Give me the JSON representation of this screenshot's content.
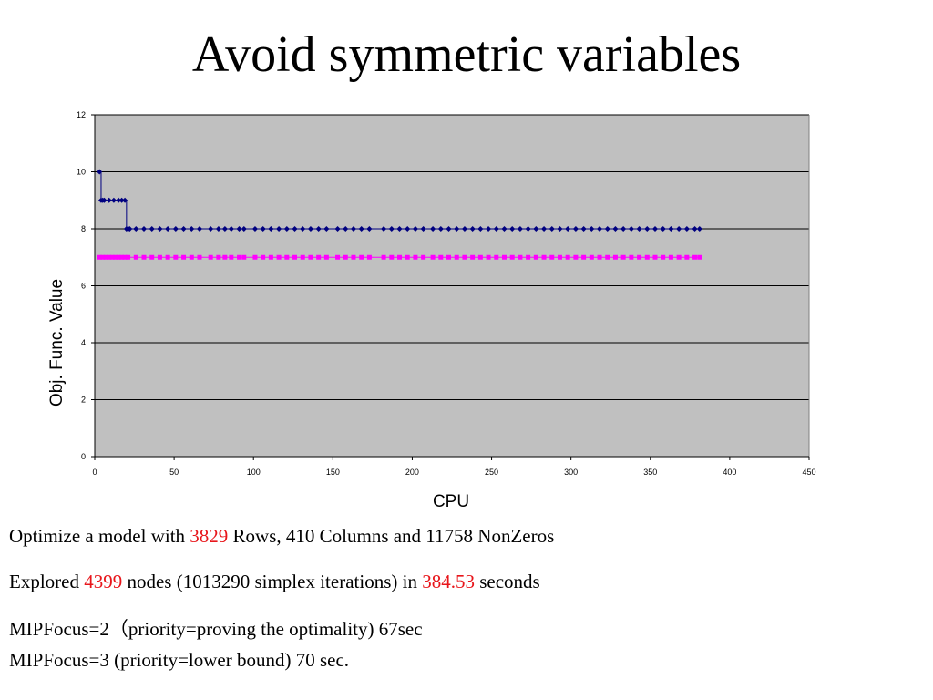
{
  "slide": {
    "title": "Avoid  symmetric variables"
  },
  "chart_data": {
    "type": "line",
    "title": "",
    "xlabel": "CPU",
    "ylabel": "Obj. Func. Value",
    "xlim": [
      0,
      450
    ],
    "ylim": [
      0,
      12
    ],
    "xticks": [
      0,
      50,
      100,
      150,
      200,
      250,
      300,
      350,
      400,
      450
    ],
    "yticks": [
      0,
      2,
      4,
      6,
      8,
      10,
      12
    ],
    "grid": "horizontal",
    "legend": "none",
    "background": "#c0c0c0",
    "series": [
      {
        "color": "#000080",
        "marker": "diamond",
        "x": [
          3,
          4,
          5,
          6,
          9,
          12,
          15,
          17,
          19,
          20,
          21,
          22,
          26,
          31,
          36,
          41,
          46,
          51,
          56,
          61,
          66,
          73,
          78,
          82,
          86,
          91,
          94,
          101,
          106,
          111,
          116,
          121,
          126,
          131,
          136,
          141,
          146,
          153,
          158,
          163,
          168,
          173,
          182,
          187,
          192,
          197,
          202,
          207,
          213,
          218,
          223,
          228,
          233,
          238,
          243,
          248,
          253,
          258,
          263,
          268,
          273,
          278,
          283,
          288,
          293,
          298,
          303,
          308,
          313,
          318,
          323,
          328,
          333,
          338,
          343,
          348,
          353,
          358,
          363,
          368,
          373,
          378,
          381
        ],
        "y": [
          10,
          9,
          9,
          9,
          9,
          9,
          9,
          9,
          9,
          8,
          8,
          8,
          8,
          8,
          8,
          8,
          8,
          8,
          8,
          8,
          8,
          8,
          8,
          8,
          8,
          8,
          8,
          8,
          8,
          8,
          8,
          8,
          8,
          8,
          8,
          8,
          8,
          8,
          8,
          8,
          8,
          8,
          8,
          8,
          8,
          8,
          8,
          8,
          8,
          8,
          8,
          8,
          8,
          8,
          8,
          8,
          8,
          8,
          8,
          8,
          8,
          8,
          8,
          8,
          8,
          8,
          8,
          8,
          8,
          8,
          8,
          8,
          8,
          8,
          8,
          8,
          8,
          8,
          8,
          8,
          8,
          8,
          8
        ]
      },
      {
        "color": "#ff00ff",
        "marker": "square",
        "x": [
          3,
          5,
          7,
          9,
          11,
          13,
          15,
          17,
          19,
          21,
          26,
          31,
          36,
          41,
          46,
          51,
          56,
          61,
          66,
          73,
          78,
          82,
          86,
          91,
          94,
          101,
          106,
          111,
          116,
          121,
          126,
          131,
          136,
          141,
          146,
          153,
          158,
          163,
          168,
          173,
          182,
          187,
          192,
          197,
          202,
          207,
          213,
          218,
          223,
          228,
          233,
          238,
          243,
          248,
          253,
          258,
          263,
          268,
          273,
          278,
          283,
          288,
          293,
          298,
          303,
          308,
          313,
          318,
          323,
          328,
          333,
          338,
          343,
          348,
          353,
          358,
          363,
          368,
          373,
          378,
          381
        ],
        "y": [
          7,
          7,
          7,
          7,
          7,
          7,
          7,
          7,
          7,
          7,
          7,
          7,
          7,
          7,
          7,
          7,
          7,
          7,
          7,
          7,
          7,
          7,
          7,
          7,
          7,
          7,
          7,
          7,
          7,
          7,
          7,
          7,
          7,
          7,
          7,
          7,
          7,
          7,
          7,
          7,
          7,
          7,
          7,
          7,
          7,
          7,
          7,
          7,
          7,
          7,
          7,
          7,
          7,
          7,
          7,
          7,
          7,
          7,
          7,
          7,
          7,
          7,
          7,
          7,
          7,
          7,
          7,
          7,
          7,
          7,
          7,
          7,
          7,
          7,
          7,
          7,
          7,
          7,
          7,
          7,
          7
        ]
      }
    ]
  },
  "info": {
    "line1": {
      "pre": "Optimize a model with ",
      "rows": "3829",
      "post": " Rows, 410 Columns and 11758 NonZeros"
    },
    "line2": {
      "pre": "Explored ",
      "nodes": "4399",
      "mid": " nodes (1013290 simplex iterations) in ",
      "secs": "384.53",
      "post": " seconds"
    },
    "line3": "MIPFocus=2（priority=proving the optimality) 67sec",
    "line4": "MIPFocus=3 (priority=lower bound)  70 sec."
  }
}
